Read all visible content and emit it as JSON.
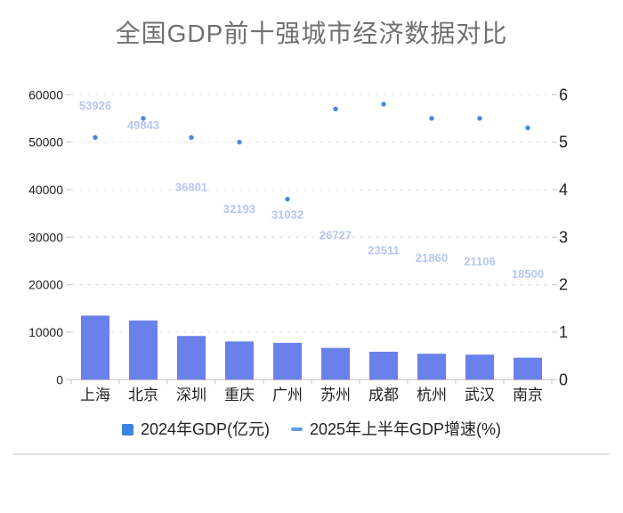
{
  "chart_data": {
    "type": "combo",
    "title": "全国GDP前十强城市经济数据对比",
    "categories": [
      "上海",
      "北京",
      "深圳",
      "重庆",
      "广州",
      "苏州",
      "成都",
      "杭州",
      "武汉",
      "南京"
    ],
    "series": [
      {
        "name": "2024年GDP(亿元)",
        "type": "bar",
        "y_axis": "left",
        "values": [
          53926,
          49843,
          36801,
          32193,
          31032,
          26727,
          23511,
          21860,
          21106,
          18500
        ],
        "bar_display_scale": 0.25,
        "marker": "square"
      },
      {
        "name": "2025年上半年GDP增速(%)",
        "type": "scatter",
        "y_axis": "right",
        "values": [
          5.1,
          5.5,
          5.1,
          5.0,
          3.8,
          5.7,
          5.8,
          5.5,
          5.5,
          5.3
        ],
        "marker": "dash"
      }
    ],
    "left_axis": {
      "min": 0,
      "max": 60000,
      "ticks": [
        0,
        10000,
        20000,
        30000,
        40000,
        50000,
        60000
      ],
      "tick_labels": [
        "0",
        "10000",
        "20000",
        "30000",
        "40000",
        "50000",
        "60000"
      ]
    },
    "right_axis": {
      "min": 0,
      "max": 6,
      "ticks": [
        0,
        1,
        2,
        3,
        4,
        5,
        6
      ],
      "tick_labels": [
        "0",
        "1",
        "2",
        "3",
        "4",
        "5",
        "6"
      ]
    },
    "grid": true,
    "legend_position": "bottom"
  },
  "colors": {
    "bar": "#6981eb",
    "bar_value_label": "#b7c6f3",
    "scatter": "#4189e6",
    "legend_bar_marker": "#3e82e0",
    "legend_line_marker": "#5f9ce9",
    "grid_line": "#e0e0e0",
    "axis_line": "#cfcfcf",
    "tick_text": "#222222",
    "title_text": "#707070",
    "legend_text": "#222222",
    "divider": "#e2e2e2"
  }
}
